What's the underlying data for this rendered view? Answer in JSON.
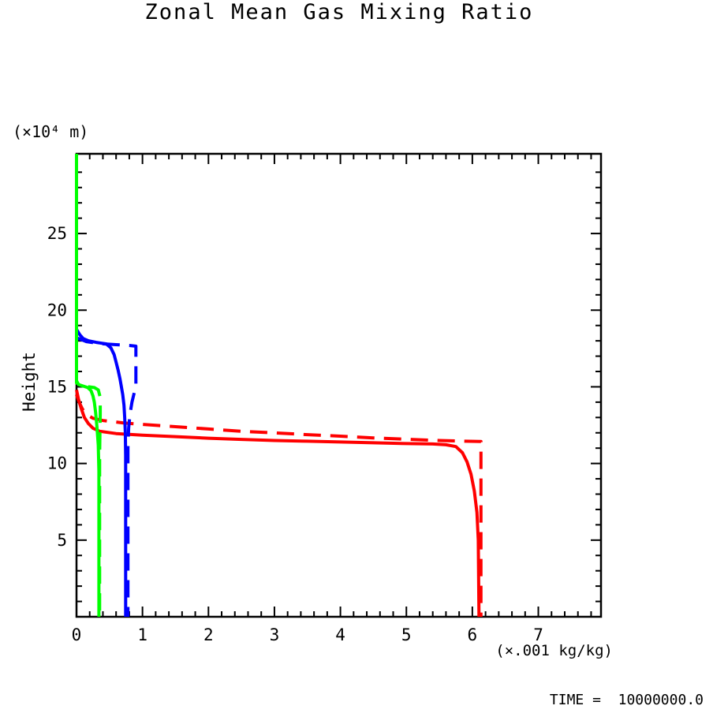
{
  "title": "Zonal Mean Gas Mixing Ratio",
  "y_unit_label": "(×10⁴ m)",
  "x_unit_label": "(×.001 kg/kg)",
  "footer_time": "TIME =  10000000.0",
  "chart_data": {
    "type": "line",
    "title": "Zonal Mean Gas Mixing Ratio",
    "xlabel": "(×.001 kg/kg)",
    "ylabel": "Height",
    "xlim": [
      0,
      7.95
    ],
    "ylim": [
      0,
      30.2
    ],
    "x_ticks_major": [
      0,
      1,
      2,
      3,
      4,
      5,
      6,
      7
    ],
    "x_minor_step": 0.2,
    "y_ticks_major": [
      5,
      10,
      15,
      20,
      25
    ],
    "y_minor_step": 1,
    "grid": false,
    "legend": "none",
    "frame_color": "#000000",
    "background": "#ffffff",
    "series": [
      {
        "name": "red-solid",
        "color": "#ff0000",
        "style": "solid",
        "points": [
          [
            0,
            14.8
          ],
          [
            0.03,
            14.2
          ],
          [
            0.07,
            13.6
          ],
          [
            0.12,
            13.0
          ],
          [
            0.18,
            12.6
          ],
          [
            0.25,
            12.3
          ],
          [
            0.35,
            12.1
          ],
          [
            0.6,
            11.95
          ],
          [
            1.0,
            11.85
          ],
          [
            1.5,
            11.75
          ],
          [
            2.0,
            11.65
          ],
          [
            2.5,
            11.57
          ],
          [
            3.0,
            11.5
          ],
          [
            3.5,
            11.45
          ],
          [
            4.0,
            11.4
          ],
          [
            4.5,
            11.35
          ],
          [
            5.0,
            11.3
          ],
          [
            5.4,
            11.27
          ],
          [
            5.6,
            11.22
          ],
          [
            5.75,
            11.1
          ],
          [
            5.85,
            10.7
          ],
          [
            5.92,
            10.1
          ],
          [
            5.98,
            9.3
          ],
          [
            6.03,
            8.2
          ],
          [
            6.07,
            6.8
          ],
          [
            6.09,
            5.0
          ],
          [
            6.1,
            0
          ]
        ]
      },
      {
        "name": "red-dashed",
        "color": "#ff0000",
        "style": "dashed",
        "points": [
          [
            0,
            14.5
          ],
          [
            0.04,
            14.0
          ],
          [
            0.09,
            13.55
          ],
          [
            0.15,
            13.2
          ],
          [
            0.25,
            12.95
          ],
          [
            0.4,
            12.8
          ],
          [
            0.7,
            12.65
          ],
          [
            1.0,
            12.55
          ],
          [
            1.5,
            12.4
          ],
          [
            2.0,
            12.25
          ],
          [
            2.5,
            12.1
          ],
          [
            3.0,
            12.0
          ],
          [
            3.5,
            11.88
          ],
          [
            4.0,
            11.78
          ],
          [
            4.5,
            11.67
          ],
          [
            5.0,
            11.58
          ],
          [
            5.5,
            11.5
          ],
          [
            5.9,
            11.45
          ],
          [
            6.13,
            11.43
          ],
          [
            6.13,
            0
          ]
        ]
      },
      {
        "name": "blue-solid",
        "color": "#0000ff",
        "style": "solid",
        "points": [
          [
            0,
            18.75
          ],
          [
            0.05,
            18.4
          ],
          [
            0.1,
            18.15
          ],
          [
            0.18,
            18.0
          ],
          [
            0.3,
            17.9
          ],
          [
            0.45,
            17.8
          ],
          [
            0.52,
            17.55
          ],
          [
            0.57,
            17.1
          ],
          [
            0.6,
            16.6
          ],
          [
            0.63,
            16.1
          ],
          [
            0.66,
            15.5
          ],
          [
            0.68,
            15.0
          ],
          [
            0.7,
            14.5
          ],
          [
            0.72,
            13.8
          ],
          [
            0.73,
            13.0
          ],
          [
            0.74,
            12.0
          ],
          [
            0.745,
            10.5
          ],
          [
            0.745,
            0
          ]
        ]
      },
      {
        "name": "blue-dashed",
        "color": "#0000ff",
        "style": "dashed",
        "points": [
          [
            0,
            18.2
          ],
          [
            0.15,
            17.95
          ],
          [
            0.35,
            17.82
          ],
          [
            0.6,
            17.75
          ],
          [
            0.8,
            17.7
          ],
          [
            0.9,
            17.65
          ],
          [
            0.9,
            16.5
          ],
          [
            0.9,
            15.2
          ],
          [
            0.88,
            14.7
          ],
          [
            0.84,
            14.0
          ],
          [
            0.81,
            13.2
          ],
          [
            0.79,
            12.3
          ],
          [
            0.78,
            11.0
          ],
          [
            0.78,
            0
          ]
        ]
      },
      {
        "name": "green-solid",
        "color": "#00ff00",
        "style": "solid",
        "points": [
          [
            0,
            30.2
          ],
          [
            0,
            15.4
          ],
          [
            0.03,
            15.15
          ],
          [
            0.1,
            15.05
          ],
          [
            0.17,
            14.95
          ],
          [
            0.22,
            14.75
          ],
          [
            0.25,
            14.4
          ],
          [
            0.27,
            14.0
          ],
          [
            0.29,
            13.3
          ],
          [
            0.31,
            12.4
          ],
          [
            0.33,
            11.2
          ],
          [
            0.34,
            9.5
          ],
          [
            0.34,
            0
          ]
        ]
      },
      {
        "name": "green-dashed",
        "color": "#00ff00",
        "style": "dashed",
        "points": [
          [
            0,
            30.2
          ],
          [
            0,
            15.25
          ],
          [
            0.08,
            15.1
          ],
          [
            0.18,
            15.0
          ],
          [
            0.27,
            14.95
          ],
          [
            0.33,
            14.8
          ],
          [
            0.36,
            14.3
          ],
          [
            0.36,
            13.2
          ],
          [
            0.355,
            12.0
          ],
          [
            0.35,
            10.5
          ],
          [
            0.35,
            0
          ]
        ]
      }
    ]
  }
}
